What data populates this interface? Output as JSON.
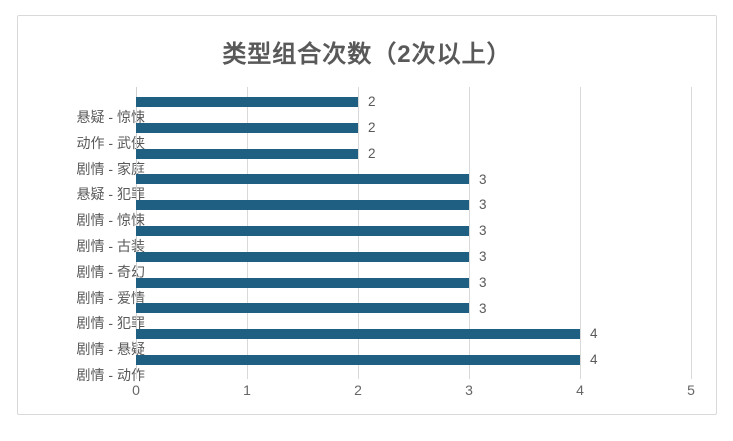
{
  "chart_data": {
    "type": "bar",
    "orientation": "horizontal",
    "title": "类型组合次数（2次以上）",
    "categories": [
      "悬疑 - 惊悚",
      "动作 - 武侠",
      "剧情 - 家庭",
      "悬疑 - 犯罪",
      "剧情 - 惊悚",
      "剧情 - 古装",
      "剧情 - 奇幻",
      "剧情 - 爱情",
      "剧情 - 犯罪",
      "剧情 - 悬疑",
      "剧情 - 动作"
    ],
    "values": [
      2,
      2,
      2,
      3,
      3,
      3,
      3,
      3,
      3,
      4,
      4
    ],
    "data_labels": [
      "2",
      "2",
      "2",
      "3",
      "3",
      "3",
      "3",
      "3",
      "3",
      "4",
      "4"
    ],
    "xlabel": "",
    "ylabel": "",
    "xlim": [
      0,
      5
    ],
    "x_ticks": [
      0,
      1,
      2,
      3,
      4,
      5
    ],
    "grid": true,
    "legend": "none",
    "colors": {
      "bar": "#1F6082",
      "title_text": "#595959",
      "axis_text": "#666666",
      "label_text": "#595959",
      "gridline": "#d9d9d9",
      "frame_border": "#d9d9d9",
      "background": "#ffffff"
    }
  }
}
